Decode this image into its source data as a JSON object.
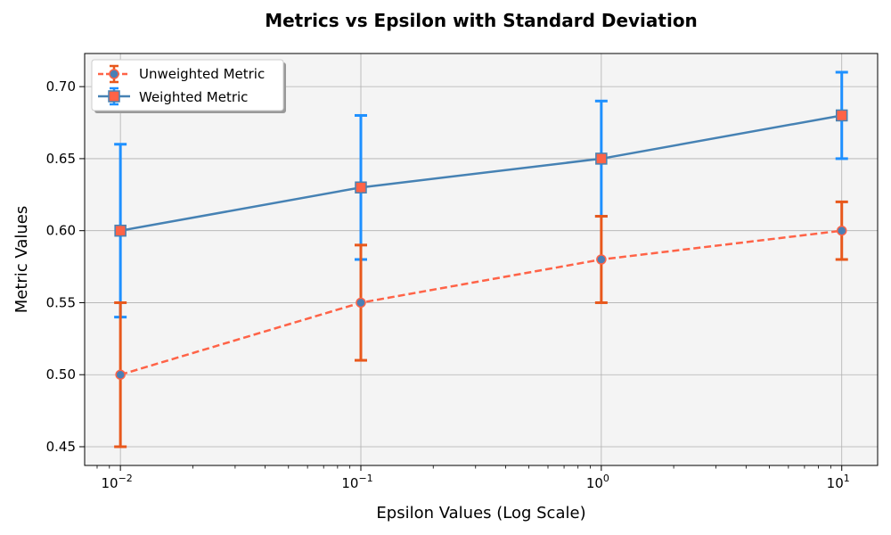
{
  "chart_data": {
    "type": "line",
    "title": "Metrics vs Epsilon with Standard Deviation",
    "xlabel": "Epsilon Values (Log Scale)",
    "ylabel": "Metric Values",
    "x_scale": "log",
    "x": [
      0.01,
      0.1,
      1,
      10
    ],
    "x_tick_labels": [
      {
        "base": "10",
        "exp": "−2"
      },
      {
        "base": "10",
        "exp": "−1"
      },
      {
        "base": "10",
        "exp": "0"
      },
      {
        "base": "10",
        "exp": "1"
      }
    ],
    "y_ticks": [
      "0.45",
      "0.50",
      "0.55",
      "0.60",
      "0.65",
      "0.70"
    ],
    "xlim": [
      0.0071,
      14.1
    ],
    "ylim": [
      0.437,
      0.723
    ],
    "grid": true,
    "legend_position": "top-left",
    "series": [
      {
        "name": "Unweighted Metric",
        "values": [
          0.5,
          0.55,
          0.58,
          0.6
        ],
        "std": [
          0.05,
          0.04,
          0.03,
          0.02
        ],
        "line_color": "#ff6347",
        "errorbar_color": "#e8581c",
        "marker_fill": "#4a7fb5",
        "marker": "circle",
        "line_style": "dashed"
      },
      {
        "name": "Weighted Metric",
        "values": [
          0.6,
          0.63,
          0.65,
          0.68
        ],
        "std": [
          0.06,
          0.05,
          0.04,
          0.03
        ],
        "line_color": "#4682b4",
        "errorbar_color": "#1e90ff",
        "marker_fill": "#ff6347",
        "marker": "square",
        "line_style": "solid"
      }
    ],
    "colors": {
      "plot_background": "#f4f4f4",
      "grid": "#b0b0b0"
    }
  }
}
